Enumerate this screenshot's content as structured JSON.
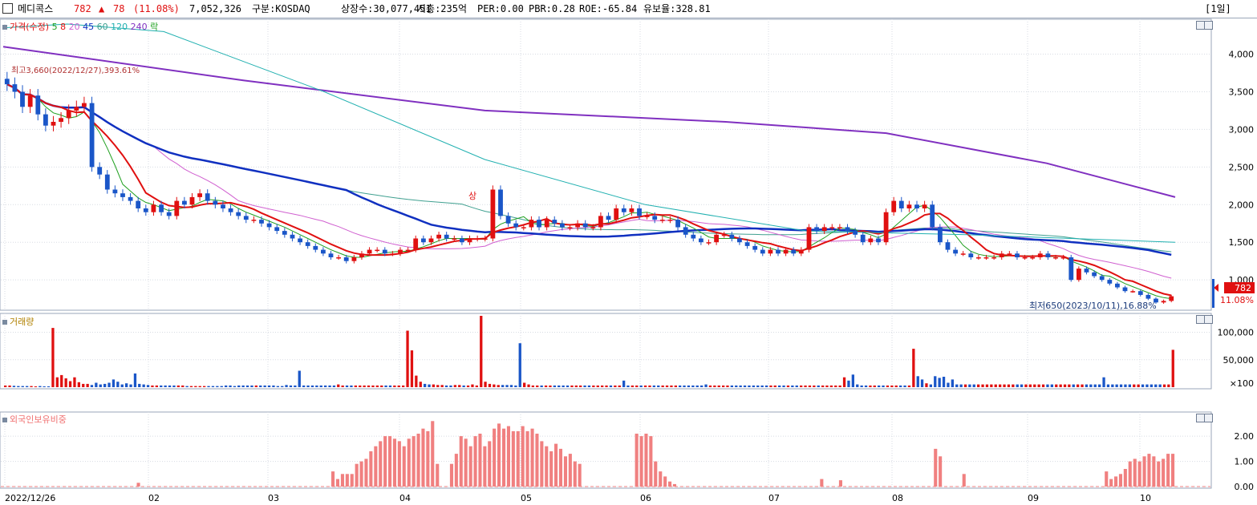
{
  "header": {
    "name": "메디콕스",
    "price": "782",
    "change_arrow": "▲",
    "change": "78",
    "change_pct": "(11.08%)",
    "volume": "7,052,326",
    "market": "구분:KOSDAQ",
    "shares": "상장수:30,077,451",
    "mcap": "시총:235억",
    "per": "PER:0.00",
    "pbr": "PBR:0.28",
    "roe": "ROE:-65.84",
    "float": "유보율:328.81",
    "period": "[1일]"
  },
  "price_pane": {
    "legend": [
      {
        "label": "가격(수정)",
        "color": "#e01010"
      },
      {
        "label": "5",
        "color": "#20a020"
      },
      {
        "label": "8",
        "color": "#e01010"
      },
      {
        "label": "20",
        "color": "#d060d0"
      },
      {
        "label": "45",
        "color": "#1030c0"
      },
      {
        "label": "60",
        "color": "#40a090"
      },
      {
        "label": "120",
        "color": "#20b0b0"
      },
      {
        "label": "240",
        "color": "#8030c0"
      },
      {
        "label": "락",
        "color": "#20a020"
      }
    ],
    "high_note": "최고3,660(2022/12/27),393.61%",
    "low_note": "최저650(2023/10/11),16.88%",
    "event_label": "상",
    "last_price_tag": "782",
    "last_pct_tag": "11.08%"
  },
  "volume_pane": {
    "title": "거래량"
  },
  "foreign_pane": {
    "title": "외국인보유비중"
  },
  "colors": {
    "up": "#e01010",
    "down": "#1a56c8",
    "foreign": "#f08080",
    "grid": "#d7dbe3"
  },
  "chart_data": [
    {
      "type": "candlestick",
      "title": "",
      "x": "date",
      "x_tick_labels": [
        "2022/12/26",
        "02",
        "03",
        "04",
        "05",
        "06",
        "07",
        "08",
        "09",
        "10"
      ],
      "y_tick_labels": [
        "4,000",
        "3,500",
        "3,000",
        "2,500",
        "2,000",
        "1,500",
        "1,000"
      ],
      "ylim": [
        650,
        4400
      ],
      "closes": [
        3600,
        3500,
        3300,
        3450,
        3200,
        3050,
        3100,
        3150,
        3250,
        3300,
        3350,
        2500,
        2400,
        2200,
        2150,
        2100,
        2050,
        1950,
        1900,
        2000,
        1900,
        1850,
        2050,
        2000,
        2100,
        2150,
        2050,
        2000,
        1950,
        1900,
        1850,
        1800,
        1800,
        1750,
        1700,
        1650,
        1600,
        1550,
        1500,
        1450,
        1400,
        1350,
        1300,
        1300,
        1250,
        1300,
        1350,
        1400,
        1400,
        1350,
        1350,
        1400,
        1400,
        1550,
        1500,
        1550,
        1600,
        1550,
        1550,
        1500,
        1550,
        1550,
        1550,
        2200,
        1850,
        1750,
        1700,
        1700,
        1800,
        1700,
        1800,
        1750,
        1700,
        1700,
        1750,
        1700,
        1700,
        1850,
        1800,
        1950,
        1900,
        1950,
        1850,
        1850,
        1800,
        1800,
        1800,
        1700,
        1600,
        1550,
        1500,
        1500,
        1600,
        1600,
        1550,
        1500,
        1450,
        1400,
        1350,
        1400,
        1350,
        1400,
        1350,
        1400,
        1700,
        1650,
        1700,
        1700,
        1700,
        1650,
        1600,
        1500,
        1550,
        1500,
        1900,
        2050,
        1950,
        2000,
        1950,
        2000,
        1700,
        1500,
        1400,
        1350,
        1350,
        1300,
        1300,
        1300,
        1300,
        1350,
        1350,
        1300,
        1300,
        1300,
        1350,
        1300,
        1300,
        1300,
        1000,
        1150,
        1100,
        1050,
        1000,
        950,
        900,
        850,
        850,
        800,
        750,
        700,
        720,
        782
      ],
      "ma_periods": [
        5,
        8,
        20,
        45,
        60,
        120,
        240
      ],
      "series": [
        {
          "name": "240",
          "values": [
            [
              0,
              4100
            ],
            [
              300,
              3650
            ],
            [
              600,
              3250
            ],
            [
              900,
              3100
            ],
            [
              1100,
              2950
            ],
            [
              1300,
              2550
            ],
            [
              1460,
              2100
            ]
          ]
        },
        {
          "name": "120",
          "values": [
            [
              0,
              4350
            ],
            [
              80,
              4400
            ],
            [
              200,
              4300
            ],
            [
              400,
              3500
            ],
            [
              600,
              2600
            ],
            [
              800,
              2000
            ],
            [
              1000,
              1650
            ],
            [
              1200,
              1600
            ],
            [
              1460,
              1500
            ]
          ]
        }
      ]
    },
    {
      "type": "bar",
      "title": "",
      "y_tick_labels": [
        "100,000",
        "50,000",
        "×100"
      ],
      "ylim": [
        0,
        130000
      ],
      "values": [
        3000,
        3000,
        2500,
        2000,
        2000,
        2000,
        2000,
        1500,
        2000,
        1500,
        1500,
        108000,
        18000,
        22000,
        16000,
        11000,
        18000,
        9000,
        6000,
        6000,
        4000,
        8000,
        5000,
        6000,
        8000,
        14000,
        10000,
        5000,
        7000,
        5000,
        25000,
        6000,
        5000,
        4000,
        3000,
        3000,
        3000,
        3000,
        3000,
        3000,
        3000,
        3000,
        2000,
        2000,
        2000,
        2000,
        2000,
        2000,
        2000,
        2000,
        2000,
        3000,
        3000,
        2000,
        3000,
        3000,
        3000,
        3000,
        3000,
        3000,
        3000,
        3000,
        3000,
        2000,
        2000,
        4000,
        3000,
        3000,
        30000,
        3000,
        3000,
        3000,
        3000,
        3000,
        3000,
        3000,
        3000,
        5000,
        3000,
        3000,
        3000,
        3000,
        3000,
        3000,
        3000,
        3000,
        3000,
        3000,
        3000,
        3000,
        3000,
        3000,
        3000,
        103000,
        67000,
        21000,
        10000,
        6000,
        5000,
        5000,
        4000,
        4000,
        3000,
        3000,
        4000,
        4000,
        3000,
        3000,
        5000,
        3000,
        130000,
        10000,
        6000,
        5000,
        4000,
        4000,
        4000,
        4000,
        3000,
        80000,
        8000,
        5000,
        3000,
        3000,
        3000,
        3000,
        3000,
        3000,
        3000,
        3000,
        3000,
        3000,
        3000,
        3000,
        3000,
        3000,
        3000,
        3000,
        3000,
        3000,
        3000,
        3000,
        3000,
        12000,
        3000,
        3000,
        3000,
        3000,
        3000,
        3000,
        3000,
        3000,
        3000,
        3000,
        3000,
        3000,
        3000,
        3000,
        3000,
        3000,
        3000,
        3000,
        5000,
        3000,
        3000,
        3000,
        3000,
        3000,
        3000,
        3000,
        3000,
        3000,
        3000,
        3000,
        3000,
        3000,
        3000,
        3000,
        3000,
        3000,
        3000,
        3000,
        3000,
        3000,
        3000,
        3000,
        3000,
        3000,
        3000,
        3000,
        3000,
        3000,
        3000,
        3000,
        18000,
        12000,
        23000,
        5000,
        3000,
        3000,
        3000,
        3000,
        3000,
        3000,
        3000,
        3000,
        3000,
        3000,
        3000,
        3000,
        70000,
        20000,
        14000,
        7000,
        5000,
        20000,
        17000,
        19000,
        8000,
        14000,
        5000,
        5000,
        5000,
        5000,
        5000,
        5000,
        5000,
        5000,
        5000,
        5000,
        5000,
        5000,
        5000,
        5000,
        5000,
        5000,
        5000,
        5000,
        5000,
        5000,
        5000,
        5000,
        5000,
        5000,
        5000,
        5000,
        5000,
        5000,
        5000,
        5000,
        5000,
        5000,
        5000,
        5000,
        18000,
        5000,
        5000,
        5000,
        5000,
        5000,
        5000,
        5000,
        5000,
        5000,
        5000,
        5000,
        5000,
        5000,
        5000,
        5000,
        68000
      ]
    },
    {
      "type": "bar",
      "title": "",
      "y_tick_labels": [
        "2.00",
        "1.00",
        "0.00"
      ],
      "ylim": [
        0,
        2.8
      ],
      "values": [
        0,
        0,
        0,
        0,
        0,
        0,
        0,
        0,
        0,
        0,
        0,
        0,
        0,
        0,
        0,
        0,
        0,
        0,
        0,
        0,
        0,
        0,
        0,
        0,
        0,
        0,
        0,
        0,
        0.15,
        0,
        0,
        0,
        0,
        0,
        0,
        0,
        0,
        0,
        0,
        0,
        0,
        0,
        0,
        0,
        0,
        0,
        0,
        0,
        0,
        0,
        0,
        0,
        0,
        0,
        0,
        0,
        0,
        0,
        0,
        0,
        0,
        0,
        0,
        0,
        0,
        0,
        0,
        0,
        0,
        0.6,
        0.3,
        0.5,
        0.5,
        0.5,
        0.9,
        1.0,
        1.1,
        1.4,
        1.6,
        1.8,
        2.0,
        2.0,
        1.9,
        1.8,
        1.6,
        1.9,
        2.0,
        2.1,
        2.3,
        2.2,
        2.6,
        0.9,
        0,
        0,
        0.9,
        1.3,
        2.0,
        1.9,
        1.6,
        2.0,
        2.1,
        1.6,
        1.8,
        2.3,
        2.5,
        2.3,
        2.4,
        2.2,
        2.2,
        2.4,
        2.2,
        2.3,
        2.1,
        1.8,
        1.6,
        1.4,
        1.7,
        1.5,
        1.2,
        1.3,
        1.0,
        0.9,
        0,
        0,
        0,
        0,
        0,
        0,
        0,
        0,
        0,
        0,
        0,
        2.1,
        2.0,
        2.1,
        2.0,
        1.0,
        0.6,
        0.4,
        0.2,
        0.1,
        0,
        0,
        0,
        0,
        0,
        0,
        0,
        0,
        0,
        0,
        0,
        0,
        0,
        0,
        0,
        0,
        0,
        0,
        0,
        0,
        0,
        0,
        0,
        0,
        0,
        0,
        0,
        0,
        0,
        0,
        0.3,
        0,
        0,
        0,
        0.25,
        0,
        0,
        0,
        0,
        0,
        0,
        0,
        0,
        0,
        0,
        0,
        0,
        0,
        0,
        0,
        0,
        0,
        0,
        0,
        1.5,
        1.2,
        0,
        0,
        0,
        0,
        0.5,
        0,
        0,
        0,
        0,
        0,
        0,
        0,
        0,
        0,
        0,
        0,
        0,
        0,
        0,
        0,
        0,
        0,
        0,
        0,
        0,
        0,
        0,
        0,
        0,
        0,
        0,
        0,
        0,
        0,
        0.6,
        0.3,
        0.4,
        0.5,
        0.7,
        1.0,
        1.1,
        1.0,
        1.2,
        1.3,
        1.2,
        1.0,
        1.1,
        1.3,
        1.3
      ]
    }
  ]
}
